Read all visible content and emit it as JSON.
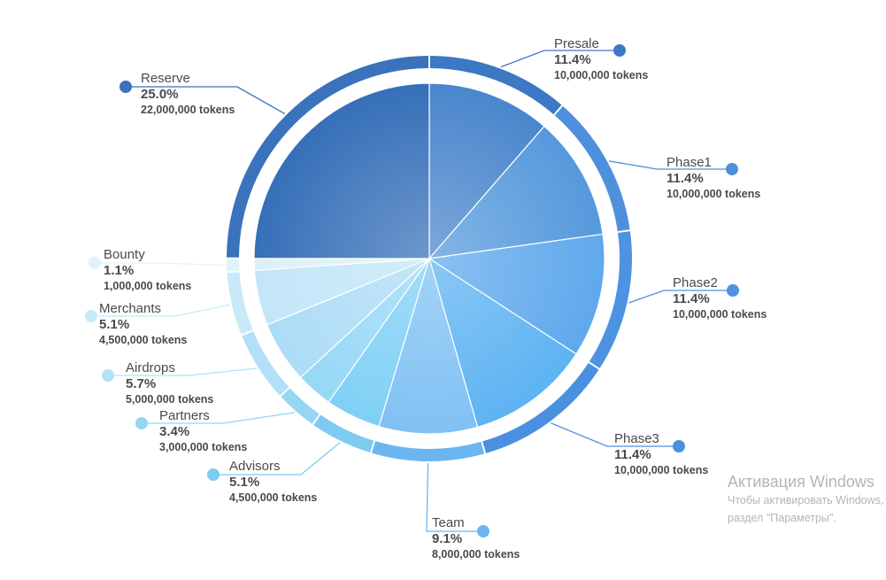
{
  "chart_data": {
    "type": "pie",
    "title": "",
    "series": [
      {
        "name": "",
        "values": [
          {
            "label": "Presale",
            "percent": 11.4,
            "tokens": "10,000,000 tokens",
            "percent_label": "11.4%",
            "color": "#4a86cc"
          },
          {
            "label": "Phase1",
            "percent": 11.4,
            "tokens": "10,000,000 tokens",
            "percent_label": "11.4%",
            "color": "#5599dc"
          },
          {
            "label": "Phase2",
            "percent": 11.4,
            "tokens": "10,000,000 tokens",
            "percent_label": "11.4%",
            "color": "#5fa8ec"
          },
          {
            "label": "Phase3",
            "percent": 11.4,
            "tokens": "10,000,000 tokens",
            "percent_label": "11.4%",
            "color": "#5db3f2"
          },
          {
            "label": "Team",
            "percent": 9.1,
            "tokens": "8,000,000 tokens",
            "percent_label": "9.1%",
            "color": "#80c1f4"
          },
          {
            "label": "Advisors",
            "percent": 5.1,
            "tokens": "4,500,000 tokens",
            "percent_label": "5.1%",
            "color": "#7fd0f6"
          },
          {
            "label": "Partners",
            "percent": 3.4,
            "tokens": "3,000,000 tokens",
            "percent_label": "3.4%",
            "color": "#96d8f6"
          },
          {
            "label": "Airdrops",
            "percent": 5.7,
            "tokens": "5,000,000 tokens",
            "percent_label": "5.7%",
            "color": "#acdcf6"
          },
          {
            "label": "Merchants",
            "percent": 5.1,
            "tokens": "4,500,000 tokens",
            "percent_label": "5.1%",
            "color": "#c2e6f8"
          },
          {
            "label": "Bounty",
            "percent": 1.1,
            "tokens": "1,000,000 tokens",
            "percent_label": "1.1%",
            "color": "#dcf0fa"
          },
          {
            "label": "Reserve",
            "percent": 25.0,
            "tokens": "22,000,000 tokens",
            "percent_label": "25.0%",
            "color": "#356fb8"
          }
        ]
      }
    ],
    "start_direction": "top",
    "direction": "clockwise",
    "legend": "callout labels around the pie",
    "outer_ring_colors": [
      "#3d78c4",
      "#4e90dc",
      "#4c93e2",
      "#4a90e0",
      "#6bb6f0",
      "#7ecbf2",
      "#96d6f2",
      "#b2e0f6",
      "#c8eaf8",
      "#e0f3fb",
      "#3a72bc"
    ]
  },
  "watermark": {
    "title": "Активация Windows",
    "line1": "Чтобы активировать Windows, перейдите в",
    "line2": "раздел \"Параметры\"."
  }
}
